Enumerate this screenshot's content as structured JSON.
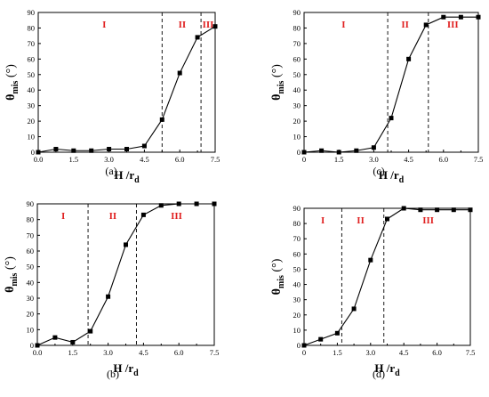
{
  "chart_data": [
    {
      "panel": "(a)",
      "type": "line",
      "x": [
        0.0,
        0.75,
        1.5,
        2.25,
        3.0,
        3.75,
        4.5,
        5.25,
        6.0,
        6.75,
        7.5
      ],
      "series": [
        {
          "values": [
            0,
            2,
            1,
            1,
            2,
            2,
            4,
            21,
            51,
            74,
            81
          ]
        }
      ],
      "xlabel": "H /r",
      "xlabel_sub": "d",
      "ylabel": "θ",
      "ylabel_sub": "mis",
      "ylabel_unit": " (°)",
      "xlim": [
        0,
        7.5
      ],
      "ylim": [
        0,
        90
      ],
      "xticks": [
        "0.0",
        "1.5",
        "3.0",
        "4.5",
        "6.0",
        "7.5"
      ],
      "yticks": [
        "0",
        "10",
        "20",
        "30",
        "40",
        "50",
        "60",
        "70",
        "80",
        "90"
      ],
      "boundaries": [
        5.25,
        6.9
      ],
      "regions": [
        {
          "label": "I",
          "x": 2.8
        },
        {
          "label": "II",
          "x": 6.1
        },
        {
          "label": "III",
          "x": 7.2
        }
      ],
      "grid": false
    },
    {
      "panel": "(c)",
      "type": "line",
      "x": [
        0.0,
        0.75,
        1.5,
        2.25,
        3.0,
        3.75,
        4.5,
        5.25,
        6.0,
        6.75,
        7.5
      ],
      "series": [
        {
          "values": [
            0,
            1,
            0,
            1,
            3,
            22,
            60,
            82,
            87,
            87,
            87
          ]
        }
      ],
      "xlabel": "H /r",
      "xlabel_sub": "d",
      "ylabel": "θ",
      "ylabel_sub": "mis",
      "ylabel_unit": " (°)",
      "xlim": [
        0,
        7.5
      ],
      "ylim": [
        0,
        90
      ],
      "xticks": [
        "0",
        "1.5",
        "3.0",
        "4.5",
        "6.0",
        "7.5"
      ],
      "yticks": [
        "0",
        "10",
        "20",
        "30",
        "40",
        "50",
        "60",
        "70",
        "80",
        "90"
      ],
      "boundaries": [
        3.6,
        5.35
      ],
      "regions": [
        {
          "label": "I",
          "x": 1.7
        },
        {
          "label": "II",
          "x": 4.35
        },
        {
          "label": "III",
          "x": 6.4
        }
      ],
      "grid": false
    },
    {
      "panel": "(b)",
      "type": "line",
      "x": [
        0.0,
        0.75,
        1.5,
        2.25,
        3.0,
        3.75,
        4.5,
        5.25,
        6.0,
        6.75,
        7.5
      ],
      "series": [
        {
          "values": [
            0,
            5,
            2,
            9,
            31,
            64,
            83,
            89,
            90,
            90,
            90
          ]
        }
      ],
      "xlabel": "H /r",
      "xlabel_sub": "d",
      "ylabel": "θ",
      "ylabel_sub": "mis",
      "ylabel_unit": " (°)",
      "xlim": [
        0,
        7.5
      ],
      "ylim": [
        0,
        90
      ],
      "xticks": [
        "0.0",
        "1.5",
        "3.0",
        "4.5",
        "6.0",
        "7.5"
      ],
      "yticks": [
        "0",
        "10",
        "20",
        "30",
        "40",
        "50",
        "60",
        "70",
        "80",
        "90"
      ],
      "boundaries": [
        2.15,
        4.2
      ],
      "regions": [
        {
          "label": "I",
          "x": 1.1
        },
        {
          "label": "II",
          "x": 3.2
        },
        {
          "label": "III",
          "x": 5.9
        }
      ],
      "grid": false
    },
    {
      "panel": "(d)",
      "type": "line",
      "x": [
        0.0,
        0.75,
        1.5,
        2.25,
        3.0,
        3.75,
        4.5,
        5.25,
        6.0,
        6.75,
        7.5
      ],
      "series": [
        {
          "values": [
            0,
            4,
            8,
            24,
            56,
            83,
            90,
            89,
            89,
            89,
            89
          ]
        }
      ],
      "xlabel": "H /r",
      "xlabel_sub": "d",
      "ylabel": "θ",
      "ylabel_sub": "mis",
      "ylabel_unit": " (°)",
      "xlim": [
        0,
        7.5
      ],
      "ylim": [
        0,
        90
      ],
      "xticks": [
        "0",
        "1.5",
        "3.0",
        "4.5",
        "6.0",
        "7.5"
      ],
      "yticks": [
        "0",
        "10",
        "20",
        "30",
        "40",
        "50",
        "60",
        "70",
        "80",
        "90"
      ],
      "boundaries": [
        1.7,
        3.6
      ],
      "regions": [
        {
          "label": "I",
          "x": 0.85
        },
        {
          "label": "II",
          "x": 2.55
        },
        {
          "label": "III",
          "x": 5.6
        }
      ],
      "grid": false
    }
  ],
  "colors": {
    "region_label": "#e02020",
    "line": "#000000",
    "marker": "#000000"
  }
}
